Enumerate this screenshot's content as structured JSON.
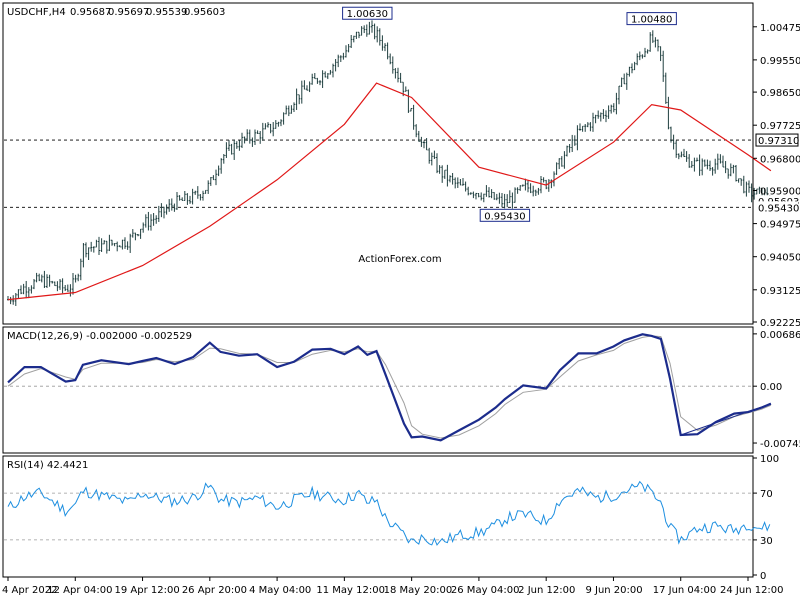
{
  "chart_data": [
    {
      "type": "candlestick",
      "panel": "price",
      "title": "USDCHF,H4",
      "ohlc_readout": [
        "0.95687",
        "0.95697",
        "0.95539",
        "0.95603"
      ],
      "watermark": "ActionForex.com",
      "ylim": [
        0.92225,
        1.01
      ],
      "yticks": [
        "1.00475",
        "0.99550",
        "0.98650",
        "0.97725",
        "0.96800",
        "0.95900",
        "0.94975",
        "0.94050",
        "0.93125",
        "0.92225"
      ],
      "ytick_values": [
        1.00475,
        0.9955,
        0.9865,
        0.97725,
        0.968,
        0.959,
        0.94975,
        0.9405,
        0.93125,
        0.92225
      ],
      "level_lines": [
        {
          "value": 0.9731,
          "label": "0.97310",
          "style": "dashed"
        },
        {
          "value": 0.9543,
          "label": "0.95430",
          "style": "dashed"
        }
      ],
      "price_tags": [
        {
          "value": 0.9731,
          "label": "0.97310"
        },
        {
          "value": 0.956,
          "label": "0.95603"
        },
        {
          "value": 0.9543,
          "label": "0.95430"
        }
      ],
      "annotations": [
        {
          "label": "1.00630",
          "date": "14 May 2022",
          "value": 1.0063
        },
        {
          "label": "0.95430",
          "date": "29 May 2022",
          "value": 0.9543
        },
        {
          "label": "1.00480",
          "date": "14 Jun 2022",
          "value": 1.0048
        }
      ],
      "x_categories": [
        "4 Apr 2022",
        "12 Apr 04:00",
        "19 Apr 12:00",
        "26 Apr 20:00",
        "4 May 04:00",
        "11 May 12:00",
        "18 May 20:00",
        "26 May 04:00",
        "2 Jun 12:00",
        "9 Jun 20:00",
        "17 Jun 04:00",
        "24 Jun 12:00"
      ],
      "close_path": [
        [
          "4 Apr 2022",
          0.9285
        ],
        [
          "6 Apr 2022",
          0.932
        ],
        [
          "8 Apr 2022",
          0.934
        ],
        [
          "11 Apr 2022",
          0.9315
        ],
        [
          "12 Apr 04:00",
          0.933
        ],
        [
          "13 Apr 2022",
          0.943
        ],
        [
          "15 Apr 2022",
          0.9435
        ],
        [
          "18 Apr 2022",
          0.945
        ],
        [
          "19 Apr 12:00",
          0.9495
        ],
        [
          "21 Apr 2022",
          0.9515
        ],
        [
          "23 Apr 2022",
          0.9555
        ],
        [
          "25 Apr 2022",
          0.957
        ],
        [
          "26 Apr 20:00",
          0.9605
        ],
        [
          "28 Apr 2022",
          0.968
        ],
        [
          "30 Apr 2022",
          0.9725
        ],
        [
          "2 May 2022",
          0.9745
        ],
        [
          "4 May 04:00",
          0.9775
        ],
        [
          "6 May 2022",
          0.9845
        ],
        [
          "8 May 2022",
          0.989
        ],
        [
          "10 May 2022",
          0.9935
        ],
        [
          "11 May 12:00",
          0.9975
        ],
        [
          "13 May 2022",
          1.003
        ],
        [
          "14 May 2022",
          1.0045
        ],
        [
          "15 May 2022",
          1.0025
        ],
        [
          "16 May 2022",
          0.999
        ],
        [
          "18 May 2022",
          0.9875
        ],
        [
          "18 May 20:00",
          0.9795
        ],
        [
          "20 May 2022",
          0.9715
        ],
        [
          "22 May 2022",
          0.964
        ],
        [
          "24 May 2022",
          0.96
        ],
        [
          "26 May 04:00",
          0.9585
        ],
        [
          "28 May 2022",
          0.9565
        ],
        [
          "29 May 2022",
          0.9555
        ],
        [
          "31 May 2022",
          0.9595
        ],
        [
          "2 Jun 12:00",
          0.961
        ],
        [
          "4 Jun 2022",
          0.9665
        ],
        [
          "6 Jun 2022",
          0.975
        ],
        [
          "8 Jun 2022",
          0.9795
        ],
        [
          "9 Jun 20:00",
          0.9825
        ],
        [
          "11 Jun 2022",
          0.9905
        ],
        [
          "13 Jun 2022",
          0.9975
        ],
        [
          "14 Jun 2022",
          1.0015
        ],
        [
          "15 Jun 2022",
          0.996
        ],
        [
          "16 Jun 2022",
          0.974
        ],
        [
          "17 Jun 04:00",
          0.9685
        ],
        [
          "19 Jun 2022",
          0.966
        ],
        [
          "21 Jun 2022",
          0.9665
        ],
        [
          "23 Jun 2022",
          0.964
        ],
        [
          "24 Jun 12:00",
          0.9585
        ],
        [
          "26 Jun 2022",
          0.958
        ],
        [
          "27 Jun 2022",
          0.956
        ]
      ],
      "series": [
        {
          "name": "",
          "color": "#e01818",
          "values": [
            [
              "4 Apr 2022",
              0.9285
            ],
            [
              "12 Apr 04:00",
              0.9305
            ],
            [
              "19 Apr 12:00",
              0.938
            ],
            [
              "26 Apr 20:00",
              0.949
            ],
            [
              "4 May 04:00",
              0.962
            ],
            [
              "11 May 12:00",
              0.9775
            ],
            [
              "15 May 2022",
              0.989
            ],
            [
              "18 May 20:00",
              0.985
            ],
            [
              "26 May 04:00",
              0.9655
            ],
            [
              "2 Jun 12:00",
              0.9605
            ],
            [
              "9 Jun 20:00",
              0.9725
            ],
            [
              "14 Jun 2022",
              0.983
            ],
            [
              "17 Jun 04:00",
              0.9815
            ],
            [
              "24 Jun 12:00",
              0.969
            ],
            [
              "27 Jun 2022",
              0.9645
            ]
          ]
        }
      ]
    },
    {
      "type": "line",
      "panel": "macd",
      "title": "MACD(12,26,9) -0.002000 -0.002529",
      "ylim": [
        -0.0085,
        0.0075
      ],
      "yticks": [
        "0.006861",
        "0.00",
        "-0.007454"
      ],
      "ytick_values": [
        0.006861,
        0,
        -0.007454
      ],
      "series": [
        {
          "name": "",
          "color": "#1c2c8c",
          "values": [
            [
              "4 Apr 2022",
              0.0005
            ],
            [
              "6 Apr 2022",
              0.0025
            ],
            [
              "8 Apr 2022",
              0.0025
            ],
            [
              "11 Apr 2022",
              0.0006
            ],
            [
              "12 Apr 04:00",
              0.0008
            ],
            [
              "13 Apr 2022",
              0.0028
            ],
            [
              "15 Apr 2022",
              0.0034
            ],
            [
              "18 Apr 2022",
              0.0029
            ],
            [
              "19 Apr 12:00",
              0.0033
            ],
            [
              "21 Apr 2022",
              0.0037
            ],
            [
              "23 Apr 2022",
              0.0029
            ],
            [
              "25 Apr 2022",
              0.0038
            ],
            [
              "26 Apr 20:00",
              0.0057
            ],
            [
              "28 Apr 2022",
              0.0045
            ],
            [
              "30 Apr 2022",
              0.004
            ],
            [
              "2 May 2022",
              0.0042
            ],
            [
              "4 May 04:00",
              0.0025
            ],
            [
              "6 May 2022",
              0.0032
            ],
            [
              "8 May 2022",
              0.0048
            ],
            [
              "10 May 2022",
              0.0049
            ],
            [
              "11 May 12:00",
              0.0042
            ],
            [
              "13 May 2022",
              0.0052
            ],
            [
              "14 May 2022",
              0.0041
            ],
            [
              "15 May 2022",
              0.0046
            ],
            [
              "16 May 2022",
              0.0015
            ],
            [
              "18 May 2022",
              -0.0049
            ],
            [
              "18 May 20:00",
              -0.0067
            ],
            [
              "20 May 2022",
              -0.0066
            ],
            [
              "22 May 2022",
              -0.0071
            ],
            [
              "24 May 2022",
              -0.0058
            ],
            [
              "26 May 04:00",
              -0.0044
            ],
            [
              "28 May 2022",
              -0.0028
            ],
            [
              "29 May 2022",
              -0.0017
            ],
            [
              "31 May 2022",
              0.0001
            ],
            [
              "2 Jun 12:00",
              -0.0003
            ],
            [
              "4 Jun 2022",
              0.0021
            ],
            [
              "6 Jun 2022",
              0.0043
            ],
            [
              "8 Jun 2022",
              0.0043
            ],
            [
              "9 Jun 20:00",
              0.0052
            ],
            [
              "11 Jun 2022",
              0.006
            ],
            [
              "13 Jun 2022",
              0.0068
            ],
            [
              "14 Jun 2022",
              0.0066
            ],
            [
              "15 Jun 2022",
              0.0062
            ],
            [
              "16 Jun 2022",
              0.001
            ],
            [
              "17 Jun 04:00",
              -0.0064
            ],
            [
              "19 Jun 2022",
              -0.0063
            ],
            [
              "21 Jun 2022",
              -0.0047
            ],
            [
              "23 Jun 2022",
              -0.0036
            ],
            [
              "24 Jun 12:00",
              -0.0034
            ],
            [
              "26 Jun 2022",
              -0.0028
            ],
            [
              "27 Jun 2022",
              -0.0023
            ]
          ]
        },
        {
          "name": "",
          "color": "#a0a0a0",
          "values": [
            [
              "4 Apr 2022",
              0.0
            ],
            [
              "6 Apr 2022",
              0.0016
            ],
            [
              "8 Apr 2022",
              0.0023
            ],
            [
              "11 Apr 2022",
              0.0012
            ],
            [
              "12 Apr 04:00",
              0.0009
            ],
            [
              "13 Apr 2022",
              0.0022
            ],
            [
              "15 Apr 2022",
              0.003
            ],
            [
              "18 Apr 2022",
              0.003
            ],
            [
              "19 Apr 12:00",
              0.0031
            ],
            [
              "21 Apr 2022",
              0.0035
            ],
            [
              "23 Apr 2022",
              0.0032
            ],
            [
              "25 Apr 2022",
              0.0035
            ],
            [
              "26 Apr 20:00",
              0.005
            ],
            [
              "28 Apr 2022",
              0.0049
            ],
            [
              "30 Apr 2022",
              0.0043
            ],
            [
              "2 May 2022",
              0.0042
            ],
            [
              "4 May 04:00",
              0.0031
            ],
            [
              "6 May 2022",
              0.0031
            ],
            [
              "8 May 2022",
              0.0042
            ],
            [
              "10 May 2022",
              0.0047
            ],
            [
              "11 May 12:00",
              0.0045
            ],
            [
              "13 May 2022",
              0.0049
            ],
            [
              "14 May 2022",
              0.0045
            ],
            [
              "15 May 2022",
              0.0046
            ],
            [
              "16 May 2022",
              0.0028
            ],
            [
              "18 May 2022",
              -0.0022
            ],
            [
              "18 May 20:00",
              -0.0052
            ],
            [
              "20 May 2022",
              -0.0063
            ],
            [
              "22 May 2022",
              -0.0068
            ],
            [
              "24 May 2022",
              -0.0064
            ],
            [
              "26 May 04:00",
              -0.0052
            ],
            [
              "28 May 2022",
              -0.0036
            ],
            [
              "29 May 2022",
              -0.0024
            ],
            [
              "31 May 2022",
              -0.0008
            ],
            [
              "2 Jun 12:00",
              -0.0004
            ],
            [
              "4 Jun 2022",
              0.0012
            ],
            [
              "6 Jun 2022",
              0.0033
            ],
            [
              "8 Jun 2022",
              0.0041
            ],
            [
              "9 Jun 20:00",
              0.0047
            ],
            [
              "11 Jun 2022",
              0.0056
            ],
            [
              "13 Jun 2022",
              0.0064
            ],
            [
              "14 Jun 2022",
              0.0066
            ],
            [
              "15 Jun 2022",
              0.0065
            ],
            [
              "16 Jun 2022",
              0.003
            ],
            [
              "17 Jun 04:00",
              -0.004
            ],
            [
              "19 Jun 2022",
              -0.0058
            ],
            [
              "21 Jun 2022",
              -0.0051
            ],
            [
              "23 Jun 2022",
              -0.004
            ],
            [
              "24 Jun 12:00",
              -0.0035
            ],
            [
              "26 Jun 2022",
              -0.003
            ],
            [
              "27 Jun 2022",
              -0.0025
            ]
          ]
        }
      ],
      "trendlines": [
        {
          "from": [
            "17 Jun 04:00",
            -0.0064
          ],
          "to": [
            "27 Jun 2022",
            -0.0023
          ],
          "color": "#1c2c8c"
        }
      ]
    },
    {
      "type": "line",
      "panel": "rsi",
      "title": "RSI(14) 42.4421",
      "ylim": [
        0,
        100
      ],
      "yticks": [
        "100",
        "70",
        "30",
        "0"
      ],
      "ytick_values": [
        100,
        70,
        30,
        0
      ],
      "level_lines": [
        {
          "value": 70,
          "style": "dashed"
        },
        {
          "value": 30,
          "style": "dashed"
        }
      ],
      "series": [
        {
          "name": "",
          "color": "#1e8fe0",
          "values": [
            [
              "4 Apr 2022",
              57
            ],
            [
              "6 Apr 2022",
              67
            ],
            [
              "8 Apr 2022",
              70
            ],
            [
              "11 Apr 2022",
              55
            ],
            [
              "12 Apr 04:00",
              60
            ],
            [
              "13 Apr 2022",
              72
            ],
            [
              "15 Apr 2022",
              68
            ],
            [
              "18 Apr 2022",
              62
            ],
            [
              "19 Apr 12:00",
              70
            ],
            [
              "21 Apr 2022",
              66
            ],
            [
              "23 Apr 2022",
              63
            ],
            [
              "25 Apr 2022",
              66
            ],
            [
              "26 Apr 20:00",
              76
            ],
            [
              "28 Apr 2022",
              64
            ],
            [
              "30 Apr 2022",
              62
            ],
            [
              "2 May 2022",
              66
            ],
            [
              "4 May 04:00",
              58
            ],
            [
              "6 May 2022",
              64
            ],
            [
              "8 May 2022",
              70
            ],
            [
              "10 May 2022",
              66
            ],
            [
              "11 May 12:00",
              64
            ],
            [
              "13 May 2022",
              70
            ],
            [
              "14 May 2022",
              62
            ],
            [
              "15 May 2022",
              64
            ],
            [
              "16 May 2022",
              48
            ],
            [
              "18 May 2022",
              34
            ],
            [
              "18 May 20:00",
              28
            ],
            [
              "20 May 2022",
              32
            ],
            [
              "22 May 2022",
              28
            ],
            [
              "24 May 2022",
              34
            ],
            [
              "26 May 04:00",
              36
            ],
            [
              "28 May 2022",
              42
            ],
            [
              "29 May 2022",
              48
            ],
            [
              "31 May 2022",
              52
            ],
            [
              "2 Jun 12:00",
              46
            ],
            [
              "4 Jun 2022",
              64
            ],
            [
              "6 Jun 2022",
              72
            ],
            [
              "8 Jun 2022",
              66
            ],
            [
              "9 Jun 20:00",
              68
            ],
            [
              "11 Jun 2022",
              72
            ],
            [
              "13 Jun 2022",
              76
            ],
            [
              "14 Jun 2022",
              70
            ],
            [
              "15 Jun 2022",
              62
            ],
            [
              "16 Jun 2022",
              40
            ],
            [
              "17 Jun 04:00",
              30
            ],
            [
              "19 Jun 2022",
              40
            ],
            [
              "21 Jun 2022",
              42
            ],
            [
              "23 Jun 2022",
              38
            ],
            [
              "24 Jun 12:00",
              44
            ],
            [
              "26 Jun 2022",
              40
            ],
            [
              "27 Jun 2022",
              42
            ]
          ]
        }
      ]
    }
  ]
}
